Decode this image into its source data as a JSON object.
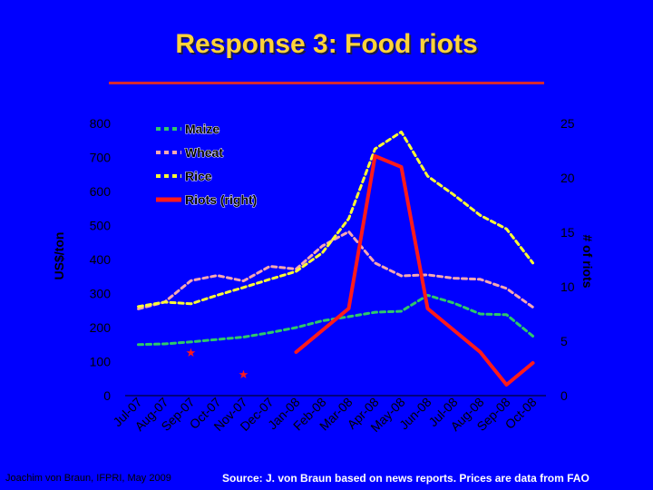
{
  "slide": {
    "title": "Response 3: Food riots",
    "footer_left": "Joachim von Braun, IFPRI, May 2009",
    "footer_right": "Source: J. von Braun based on news reports. Prices are data from FAO"
  },
  "colors": {
    "background": "#0000ff",
    "title": "#ffd33a",
    "rule": "#d7282f",
    "maize": "#2fc86a",
    "wheat": "#f7a8b0",
    "rice": "#ffff33",
    "riots": "#ff1a1a",
    "axis": "#000000"
  },
  "chart_data": {
    "type": "line",
    "categories": [
      "Jul-07",
      "Aug-07",
      "Sep-07",
      "Oct-07",
      "Nov-07",
      "Dec-07",
      "Jan-08",
      "Feb-08",
      "Mar-08",
      "Apr-08",
      "May-08",
      "Jun-08",
      "Jul-08",
      "Aug-08",
      "Sep-08",
      "Oct-08"
    ],
    "ylabel": "US$/ton",
    "ylim": [
      0,
      800
    ],
    "yticks": [
      0,
      100,
      200,
      300,
      400,
      500,
      600,
      700,
      800
    ],
    "y2label": "# of riots",
    "y2lim": [
      0,
      25
    ],
    "y2ticks": [
      0,
      5,
      10,
      15,
      20,
      25
    ],
    "legend_position": "top-left",
    "series": [
      {
        "name": "Maize",
        "axis": "left",
        "style": "dashed",
        "values": [
          150,
          152,
          158,
          165,
          172,
          185,
          200,
          220,
          232,
          245,
          248,
          295,
          272,
          240,
          238,
          175
        ]
      },
      {
        "name": "Wheat",
        "axis": "left",
        "style": "dashed",
        "values": [
          255,
          275,
          338,
          353,
          337,
          380,
          372,
          440,
          482,
          390,
          352,
          355,
          345,
          342,
          315,
          260
        ]
      },
      {
        "name": "Rice",
        "axis": "left",
        "style": "dashed",
        "values": [
          262,
          275,
          270,
          295,
          318,
          342,
          365,
          420,
          520,
          725,
          775,
          645,
          590,
          530,
          490,
          390
        ]
      },
      {
        "name": "Riots (right)",
        "axis": "right",
        "style": "solid",
        "values": [
          null,
          null,
          null,
          null,
          null,
          null,
          4,
          6,
          8,
          22,
          21,
          8,
          6,
          4,
          1,
          3
        ]
      }
    ],
    "isolated_riot_points": [
      {
        "category": "Sep-07",
        "value": 4
      },
      {
        "category": "Nov-07",
        "value": 2
      }
    ]
  }
}
